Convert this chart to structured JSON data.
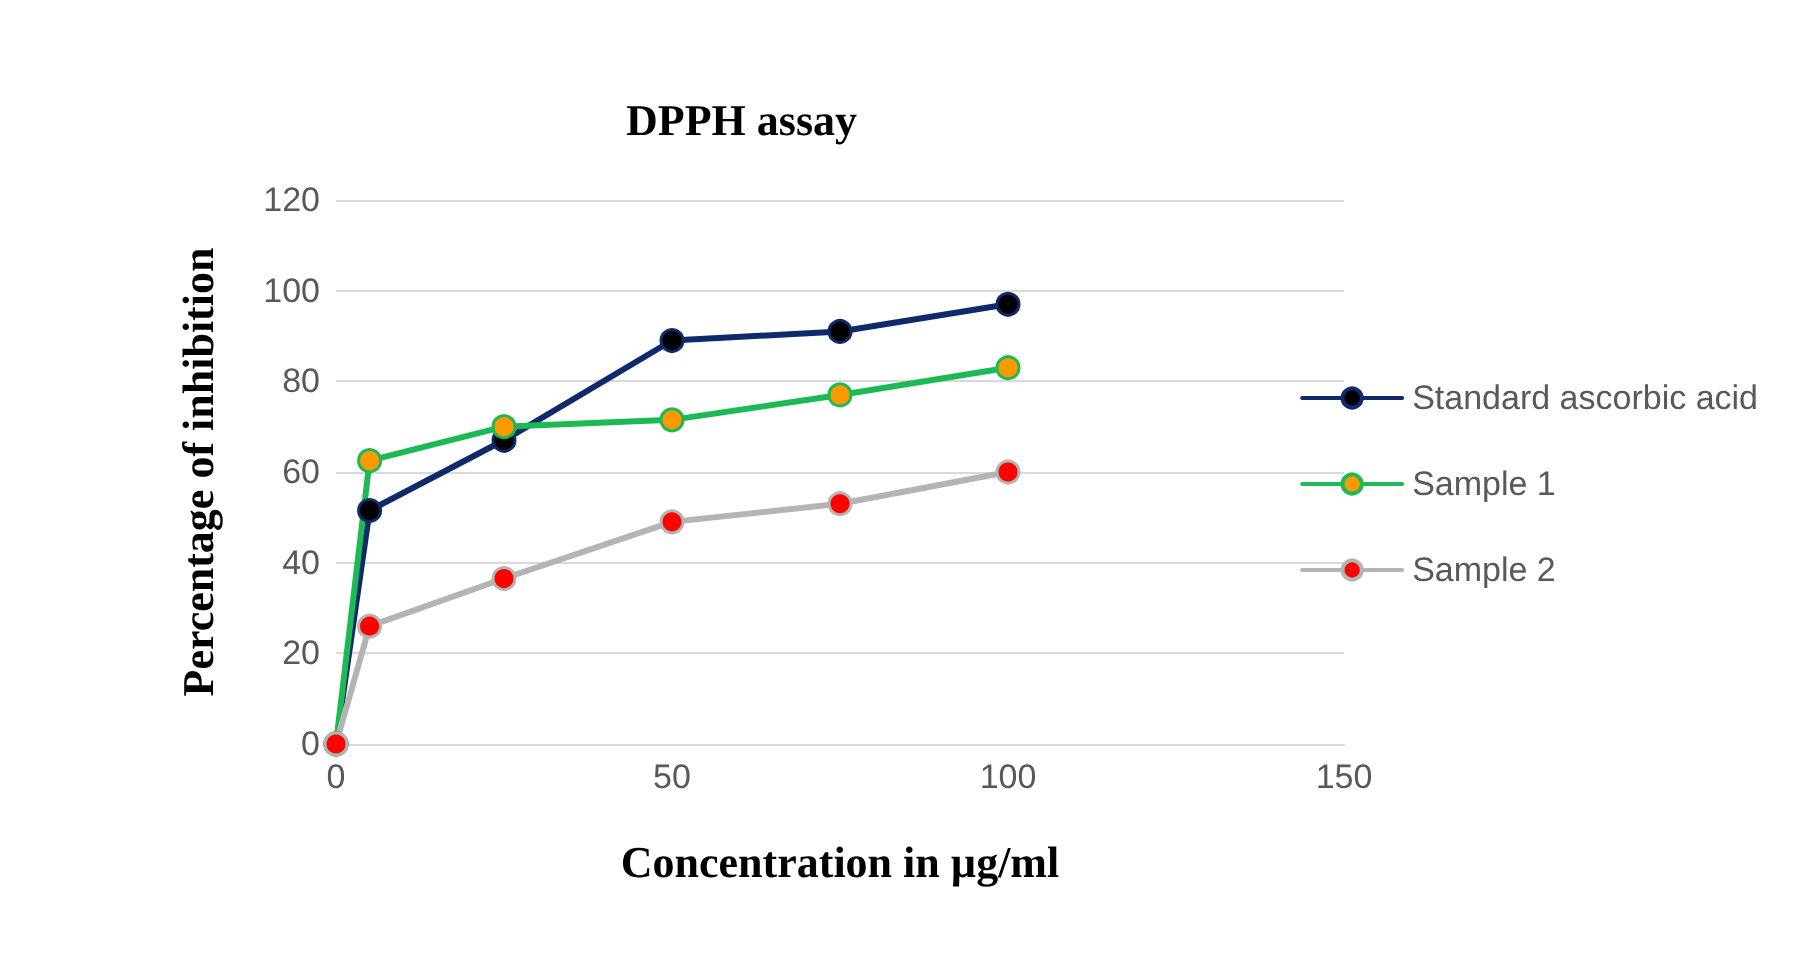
{
  "chart_data": {
    "type": "line",
    "title": "DPPH assay",
    "xlabel": "Concentration in µg/ml",
    "ylabel": "Percentage of inhibition",
    "x": [
      0,
      5,
      25,
      50,
      75,
      100
    ],
    "series": [
      {
        "name": "Standard ascorbic acid",
        "color": "#0e2a6b",
        "colors": [
          "#000000",
          "#000000",
          "#000000",
          "#000000",
          "#000000",
          "#000000"
        ],
        "values": [
          0,
          51.5,
          67,
          89,
          91,
          97
        ]
      },
      {
        "name": "Sample 1",
        "color": "#1db954",
        "colors": [
          "#ff9900",
          "#ff9900",
          "#ff9900",
          "#ff9900",
          "#ff9900",
          "#ff9900"
        ],
        "values": [
          0,
          62.5,
          70,
          71.5,
          77,
          83
        ]
      },
      {
        "name": "Sample 2",
        "color": "#b4b4b4",
        "colors": [
          "#ff0000",
          "#ff0000",
          "#ff0000",
          "#ff0000",
          "#ff0000",
          "#ff0000"
        ],
        "values": [
          0,
          26,
          36.5,
          49,
          53,
          60
        ]
      }
    ],
    "xlim": [
      0,
      150
    ],
    "xticks": [
      0,
      50,
      100,
      150
    ],
    "ylim": [
      0,
      120
    ],
    "yticks": [
      0,
      20,
      40,
      60,
      80,
      100,
      120
    ],
    "grid": "y",
    "legend": "right",
    "marker": "circle",
    "line_style": "solid"
  }
}
